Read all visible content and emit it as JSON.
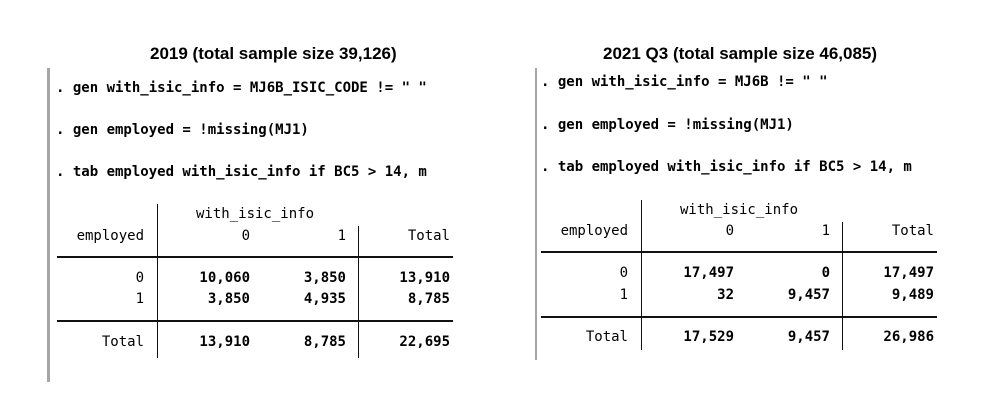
{
  "left": {
    "title": "2019 (total sample size 39,126)",
    "commands": [
      ". gen with_isic_info = MJ6B_ISIC_CODE != \" \"",
      ". gen employed = !missing(MJ1)",
      ". tab employed with_isic_info if BC5 > 14, m"
    ],
    "table": {
      "col_group": "with_isic_info",
      "row_var": "employed",
      "col_headers": [
        "0",
        "1",
        "Total"
      ],
      "rows": [
        {
          "label": "0",
          "values": [
            "10,060",
            "3,850",
            "13,910"
          ]
        },
        {
          "label": "1",
          "values": [
            "3,850",
            "4,935",
            "8,785"
          ]
        }
      ],
      "total": {
        "label": "Total",
        "values": [
          "13,910",
          "8,785",
          "22,695"
        ]
      }
    }
  },
  "right": {
    "title": "2021 Q3 (total sample size 46,085)",
    "commands": [
      ". gen with_isic_info = MJ6B != \" \"",
      ". gen employed = !missing(MJ1)",
      ". tab employed with_isic_info if BC5 > 14, m"
    ],
    "table": {
      "col_group": "with_isic_info",
      "row_var": "employed",
      "col_headers": [
        "0",
        "1",
        "Total"
      ],
      "rows": [
        {
          "label": "0",
          "values": [
            "17,497",
            "0",
            "17,497"
          ]
        },
        {
          "label": "1",
          "values": [
            "32",
            "9,457",
            "9,489"
          ]
        }
      ],
      "total": {
        "label": "Total",
        "values": [
          "17,529",
          "9,457",
          "26,986"
        ]
      }
    }
  }
}
